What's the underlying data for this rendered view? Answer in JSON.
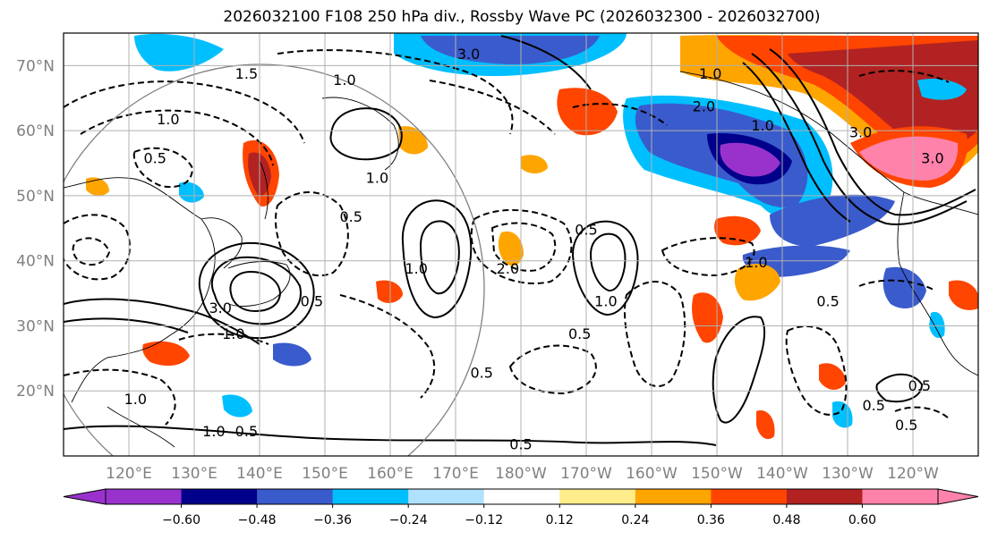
{
  "title": "2026032100 F108 250 hPa div., Rossby Wave PC (2026032300 - 2026032700)",
  "map": {
    "lat_labels": [
      "70°N",
      "60°N",
      "50°N",
      "40°N",
      "30°N",
      "20°N"
    ],
    "lat_values": [
      70,
      60,
      50,
      40,
      30,
      20
    ],
    "lon_labels": [
      "120°E",
      "130°E",
      "140°E",
      "150°E",
      "160°E",
      "170°E",
      "180°W",
      "170°W",
      "160°W",
      "150°W",
      "140°W",
      "130°W",
      "120°W"
    ],
    "lon_values": [
      120,
      130,
      140,
      150,
      160,
      170,
      180,
      190,
      200,
      210,
      220,
      230,
      240
    ],
    "lon_range": [
      110,
      250
    ],
    "lat_range": [
      10,
      75
    ],
    "contour_labels": [
      {
        "text": "3.0",
        "lon": 172,
        "lat": 71
      },
      {
        "text": "1.0",
        "lon": 153,
        "lat": 67
      },
      {
        "text": "1.5",
        "lon": 138,
        "lat": 68
      },
      {
        "text": "1.0",
        "lon": 126,
        "lat": 61
      },
      {
        "text": "0.5",
        "lon": 124,
        "lat": 55
      },
      {
        "text": "1.0",
        "lon": 158,
        "lat": 52
      },
      {
        "text": "0.5",
        "lon": 154,
        "lat": 46
      },
      {
        "text": "2.0",
        "lon": 178,
        "lat": 38
      },
      {
        "text": "1.0",
        "lon": 164,
        "lat": 38
      },
      {
        "text": "3.0",
        "lon": 134,
        "lat": 32
      },
      {
        "text": "1.0",
        "lon": 136,
        "lat": 28
      },
      {
        "text": "0.5",
        "lon": 148,
        "lat": 33
      },
      {
        "text": "0.5",
        "lon": 174,
        "lat": 22
      },
      {
        "text": "0.5",
        "lon": 189,
        "lat": 28
      },
      {
        "text": "1.0",
        "lon": 193,
        "lat": 33
      },
      {
        "text": "0.5",
        "lon": 190,
        "lat": 44
      },
      {
        "text": "0.5",
        "lon": 180,
        "lat": 11
      },
      {
        "text": "1.0",
        "lon": 133,
        "lat": 13
      },
      {
        "text": "0.5",
        "lon": 138,
        "lat": 13
      },
      {
        "text": "1.0",
        "lon": 121,
        "lat": 18
      },
      {
        "text": "0.5",
        "lon": 227,
        "lat": 33
      },
      {
        "text": "1.0",
        "lon": 216,
        "lat": 39
      },
      {
        "text": "0.5",
        "lon": 241,
        "lat": 20
      },
      {
        "text": "0.5",
        "lon": 234,
        "lat": 17
      },
      {
        "text": "0.5",
        "lon": 239,
        "lat": 14
      },
      {
        "text": "1.0",
        "lon": 217,
        "lat": 60
      },
      {
        "text": "3.0",
        "lon": 232,
        "lat": 59
      },
      {
        "text": "3.0",
        "lon": 243,
        "lat": 55
      },
      {
        "text": "2.0",
        "lon": 208,
        "lat": 63
      },
      {
        "text": "1.0",
        "lon": 209,
        "lat": 68
      }
    ]
  },
  "colorbar": {
    "ticks": [
      "−0.60",
      "−0.48",
      "−0.36",
      "−0.24",
      "−0.12",
      "0.12",
      "0.24",
      "0.36",
      "0.48",
      "0.60"
    ],
    "colors": [
      "#9932cc",
      "#00008b",
      "#3a5bcc",
      "#00bfff",
      "#b0e2ff",
      "#ffffff",
      "#ffec8b",
      "#ffa500",
      "#ff4500",
      "#b22222",
      "#ff82ab"
    ]
  }
}
